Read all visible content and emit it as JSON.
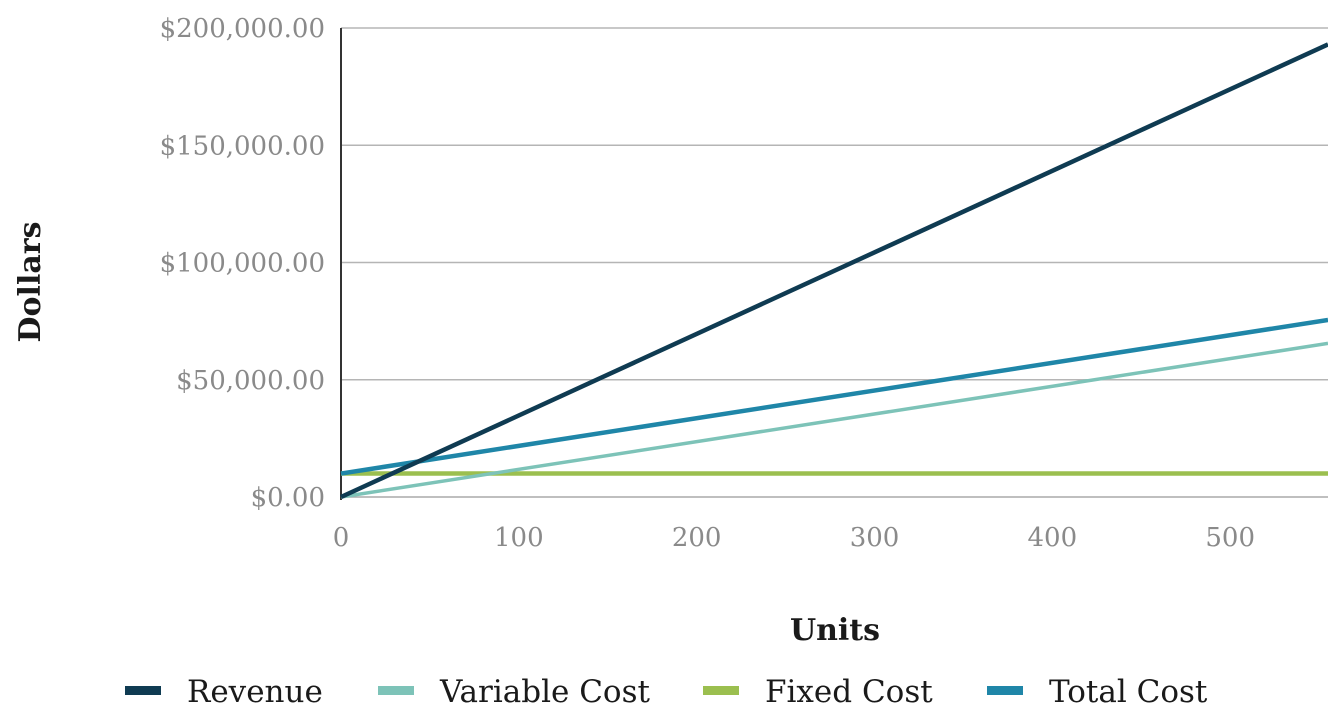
{
  "chart_data": {
    "type": "line",
    "title": "",
    "xlabel": "Units",
    "ylabel": "Dollars",
    "xlim": [
      0,
      555
    ],
    "ylim": [
      0,
      200000
    ],
    "x_ticks": [
      0,
      100,
      200,
      300,
      400,
      500
    ],
    "x_tick_labels": [
      "0",
      "100",
      "200",
      "300",
      "400",
      "500"
    ],
    "y_ticks": [
      0,
      50000,
      100000,
      150000,
      200000
    ],
    "y_tick_labels": [
      "$0.00",
      "$50,000.00",
      "$100,000.00",
      "$150,000.00",
      "$200,000.00"
    ],
    "grid": "horizontal",
    "legend_position": "bottom",
    "series": [
      {
        "name": "Revenue",
        "color": "#0f3b52",
        "x": [
          0,
          555
        ],
        "y": [
          0,
          193000
        ]
      },
      {
        "name": "Variable Cost",
        "color": "#7dc3b8",
        "x": [
          0,
          555
        ],
        "y": [
          0,
          65500
        ]
      },
      {
        "name": "Fixed Cost",
        "color": "#9bbf4f",
        "x": [
          0,
          555
        ],
        "y": [
          10000,
          10000
        ]
      },
      {
        "name": "Total Cost",
        "color": "#1f86a8",
        "x": [
          0,
          555
        ],
        "y": [
          10000,
          75500
        ]
      }
    ]
  }
}
